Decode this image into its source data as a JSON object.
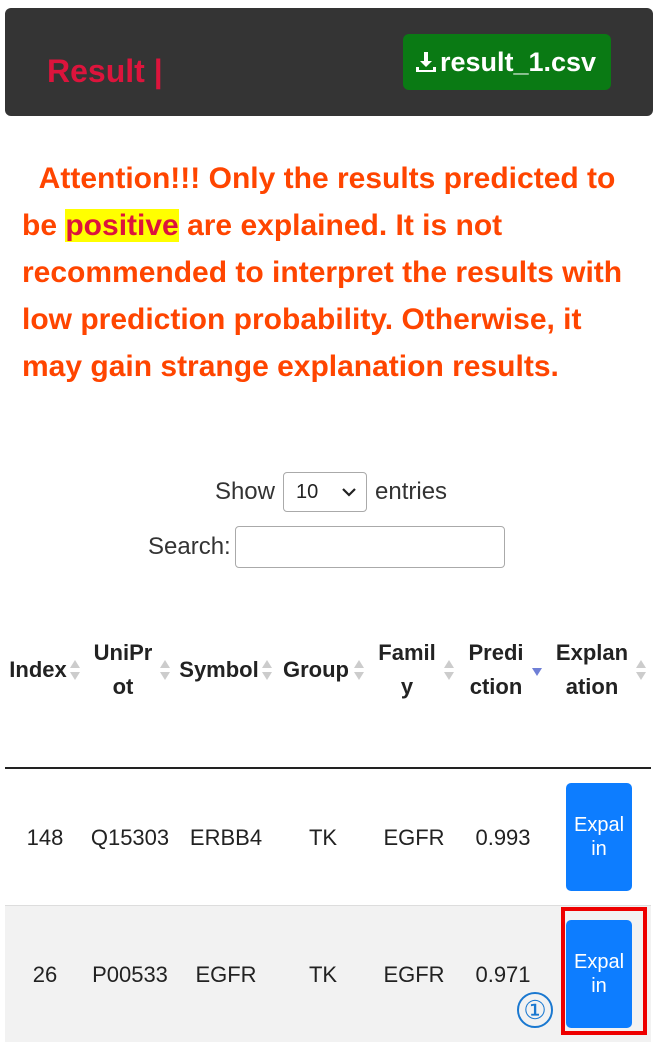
{
  "header": {
    "title": "Result |",
    "download_label": "result_1.csv"
  },
  "notice": {
    "part1": "Attention!!! Only the results predicted to be ",
    "highlight": "positive",
    "part2": " are explained. It is not recommended to interpret the results with low prediction probability. Otherwise, it may gain strange explanation results."
  },
  "controls": {
    "show_label": "Show",
    "page_size": "10",
    "entries_label": "entries",
    "search_label": "Search:",
    "search_value": ""
  },
  "table": {
    "columns": [
      "Index",
      "UniProt",
      "Symbol",
      "Group",
      "Family",
      "Prediction",
      "Explanation"
    ],
    "rows": [
      {
        "index": "148",
        "uniprot": "Q15303",
        "symbol": "ERBB4",
        "group": "TK",
        "family": "EGFR",
        "prediction": "0.993",
        "action": "Expalin"
      },
      {
        "index": "26",
        "uniprot": "P00533",
        "symbol": "EGFR",
        "group": "TK",
        "family": "EGFR",
        "prediction": "0.971",
        "action": "Expalin"
      }
    ]
  },
  "annotation": {
    "marker": "①",
    "box_color": "#ee0000",
    "marker_color": "#1a78d0"
  },
  "colors": {
    "header_bg": "#343434",
    "title": "#dc143c",
    "download_bg": "#0a7a14",
    "notice": "#ff4500",
    "highlight_bg": "#ffff00",
    "button_bg": "#0d7dff"
  }
}
